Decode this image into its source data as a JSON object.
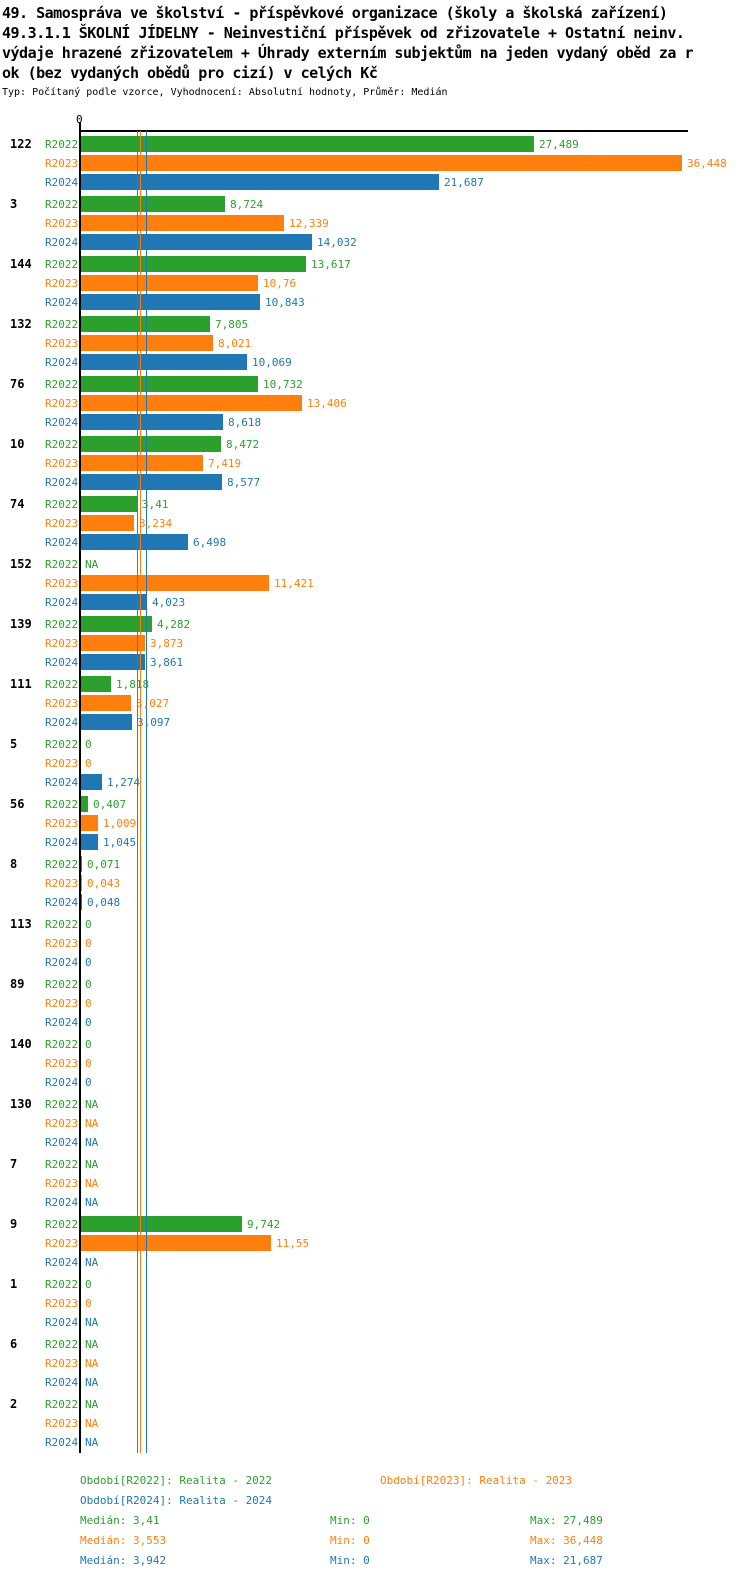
{
  "title_lines": [
    "49. Samospráva ve školství - příspěvkové organizace (školy a školská zařízení)",
    "49.3.1.1 ŠKOLNÍ JÍDELNY - Neinvestiční příspěvek od zřizovatele + Ostatní neinv.",
    "výdaje hrazené zřizovatelem + Úhrady externím subjektům na jeden vydaný oběd za r",
    "ok (bez vydaných obědů pro cizí) v celých Kč"
  ],
  "subtitle": "Typ: Počítaný podle vzorce, Vyhodnocení: Absolutní hodnoty, Průměr: Medián",
  "colors": {
    "r2022": "#2ca02c",
    "r2023": "#ff7f0e",
    "r2024": "#1f77b4",
    "axis": "#000000"
  },
  "chart_data": {
    "type": "bar",
    "orientation": "horizontal",
    "unit": "Kč",
    "axis_zero_label": "0",
    "xlim": [
      0,
      36.448
    ],
    "grid": false,
    "series": [
      {
        "name": "R2022",
        "color": "#2ca02c",
        "median": "3,41"
      },
      {
        "name": "R2023",
        "color": "#ff7f0e",
        "median": "3,553"
      },
      {
        "name": "R2024",
        "color": "#1f77b4",
        "median": "3,942"
      }
    ],
    "groups": [
      {
        "id": "122",
        "values": [
          "27,489",
          "36,448",
          "21,687"
        ]
      },
      {
        "id": "3",
        "values": [
          "8,724",
          "12,339",
          "14,032"
        ]
      },
      {
        "id": "144",
        "values": [
          "13,617",
          "10,76",
          "10,843"
        ]
      },
      {
        "id": "132",
        "values": [
          "7,805",
          "8,021",
          "10,069"
        ]
      },
      {
        "id": "76",
        "values": [
          "10,732",
          "13,406",
          "8,618"
        ]
      },
      {
        "id": "10",
        "values": [
          "8,472",
          "7,419",
          "8,577"
        ]
      },
      {
        "id": "74",
        "values": [
          "3,41",
          "3,234",
          "6,498"
        ]
      },
      {
        "id": "152",
        "values": [
          "NA",
          "11,421",
          "4,023"
        ]
      },
      {
        "id": "139",
        "values": [
          "4,282",
          "3,873",
          "3,861"
        ]
      },
      {
        "id": "111",
        "values": [
          "1,818",
          "3,027",
          "3,097"
        ]
      },
      {
        "id": "5",
        "values": [
          "0",
          "0",
          "1,274"
        ]
      },
      {
        "id": "56",
        "values": [
          "0,407",
          "1,009",
          "1,045"
        ]
      },
      {
        "id": "8",
        "values": [
          "0,071",
          "0,043",
          "0,048"
        ]
      },
      {
        "id": "113",
        "values": [
          "0",
          "0",
          "0"
        ]
      },
      {
        "id": "89",
        "values": [
          "0",
          "0",
          "0"
        ]
      },
      {
        "id": "140",
        "values": [
          "0",
          "0",
          "0"
        ]
      },
      {
        "id": "130",
        "values": [
          "NA",
          "NA",
          "NA"
        ]
      },
      {
        "id": "7",
        "values": [
          "NA",
          "NA",
          "NA"
        ]
      },
      {
        "id": "9",
        "values": [
          "9,742",
          "11,55",
          "NA"
        ]
      },
      {
        "id": "1",
        "values": [
          "0",
          "0",
          "NA"
        ]
      },
      {
        "id": "6",
        "values": [
          "NA",
          "NA",
          "NA"
        ]
      },
      {
        "id": "2",
        "values": [
          "NA",
          "NA",
          "NA"
        ]
      }
    ]
  },
  "legend": {
    "items": [
      {
        "label": "Období[R2022]: Realita - 2022",
        "color": "#2ca02c"
      },
      {
        "label": "Období[R2023]: Realita - 2023",
        "color": "#ff7f0e"
      },
      {
        "label": "Období[R2024]: Realita - 2024",
        "color": "#1f77b4"
      }
    ]
  },
  "stats": {
    "rows": [
      {
        "median": "Medián: 3,41",
        "min": "Min: 0",
        "max": "Max: 27,489",
        "color": "#2ca02c"
      },
      {
        "median": "Medián: 3,553",
        "min": "Min: 0",
        "max": "Max: 36,448",
        "color": "#ff7f0e"
      },
      {
        "median": "Medián: 3,942",
        "min": "Min: 0",
        "max": "Max: 21,687",
        "color": "#1f77b4"
      }
    ]
  }
}
